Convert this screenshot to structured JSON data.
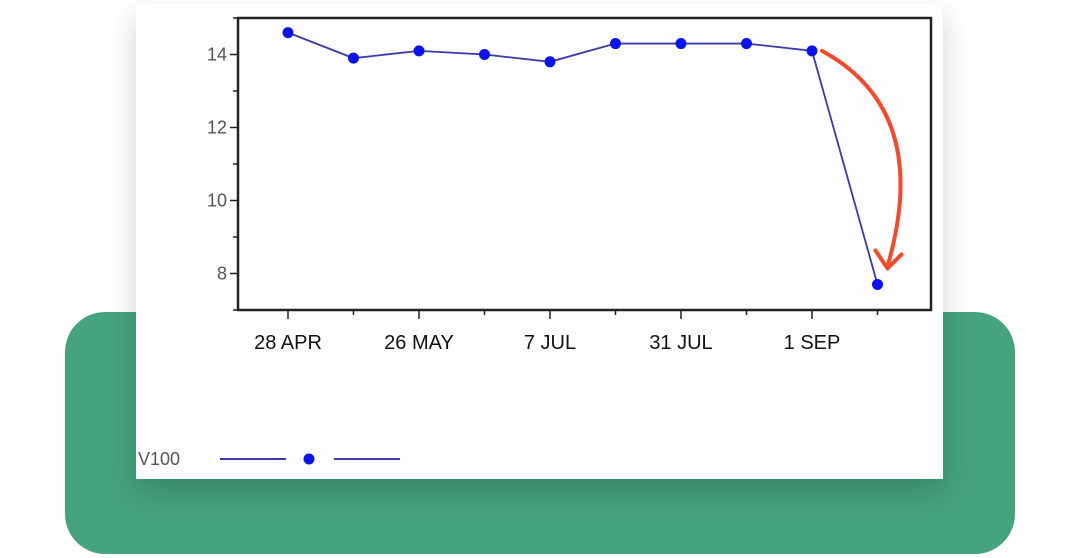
{
  "colors": {
    "panel": "#45a37d",
    "series": "#0a14e8",
    "line": "#3a3aa8",
    "arrow": "#f24b2c",
    "axis": "#222222"
  },
  "chart_data": {
    "type": "line",
    "title": "",
    "xlabel": "",
    "ylabel": "",
    "x_tick_labels": [
      "28 APR",
      "26 MAY",
      "7 JUL",
      "31 JUL",
      "1 SEP"
    ],
    "y_ticks": [
      8,
      10,
      12,
      14
    ],
    "ylim": [
      7,
      15
    ],
    "grid": false,
    "legend": "bottom-left",
    "series": [
      {
        "name": "V100",
        "values": [
          14.6,
          13.9,
          14.1,
          14.0,
          13.8,
          14.3,
          14.3,
          14.3,
          14.1,
          7.7
        ]
      }
    ],
    "annotations": [
      "arrow-from-last-high-to-final-drop"
    ]
  }
}
